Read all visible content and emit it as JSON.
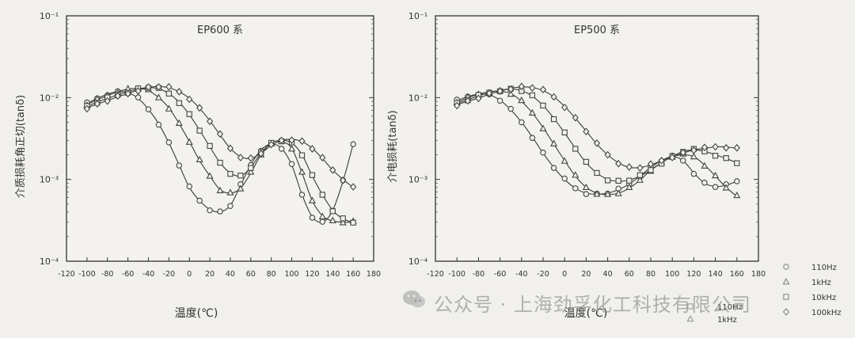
{
  "watermark": {
    "text": "公众号 · 上海劲孚化工科技有限公司"
  },
  "chart_data": [
    {
      "type": "line",
      "title": "EP600 系",
      "xlabel": "温度(℃)",
      "ylabel": "介质损耗角正切(tanδ)",
      "yscale": "log",
      "xlim": [
        -120,
        180
      ],
      "ylim": [
        0.0001,
        0.1
      ],
      "xticks": [
        "-120",
        "-100",
        "-80",
        "-60",
        "-40",
        "-20",
        "0",
        "20",
        "40",
        "60",
        "80",
        "100",
        "120",
        "140",
        "160",
        "180"
      ],
      "yticks": [
        "10⁻¹",
        "10⁻²",
        "10⁻³",
        "10⁻⁴"
      ],
      "grid": false,
      "legend": "none",
      "series": [
        {
          "marker": "circle",
          "x": [
            -100,
            -90,
            -80,
            -70,
            -60,
            -50,
            -40,
            -30,
            -20,
            -10,
            0,
            10,
            20,
            30,
            40,
            50,
            60,
            70,
            80,
            90,
            100,
            110,
            120,
            130,
            140,
            150,
            160
          ],
          "y": [
            0.0085,
            0.0098,
            0.011,
            0.0118,
            0.0115,
            0.0098,
            0.0072,
            0.0048,
            0.0028,
            0.0015,
            0.0008,
            0.00055,
            0.00043,
            0.0004,
            0.00048,
            0.00085,
            0.0015,
            0.0023,
            0.0027,
            0.0024,
            0.0015,
            0.00065,
            0.00035,
            0.0003,
            0.00042,
            0.00095,
            0.0027
          ]
        },
        {
          "marker": "triangle",
          "x": [
            -100,
            -90,
            -80,
            -70,
            -60,
            -50,
            -40,
            -30,
            -20,
            -10,
            0,
            10,
            20,
            30,
            40,
            50,
            60,
            70,
            80,
            90,
            100,
            110,
            120,
            130,
            140,
            150,
            160
          ],
          "y": [
            0.0082,
            0.0094,
            0.0106,
            0.0118,
            0.0127,
            0.013,
            0.0122,
            0.01,
            0.0075,
            0.0048,
            0.0029,
            0.0017,
            0.0011,
            0.00075,
            0.00068,
            0.00078,
            0.0012,
            0.002,
            0.0028,
            0.0029,
            0.0024,
            0.0012,
            0.00055,
            0.00036,
            0.00031,
            0.0003,
            0.0003
          ]
        },
        {
          "marker": "square",
          "x": [
            -100,
            -90,
            -80,
            -70,
            -60,
            -50,
            -40,
            -30,
            -20,
            -10,
            0,
            10,
            20,
            30,
            40,
            50,
            60,
            70,
            80,
            90,
            100,
            110,
            120,
            130,
            140,
            150,
            160
          ],
          "y": [
            0.0078,
            0.0088,
            0.0098,
            0.0108,
            0.0118,
            0.0128,
            0.0133,
            0.0128,
            0.0112,
            0.0088,
            0.0062,
            0.004,
            0.0025,
            0.0016,
            0.0012,
            0.0011,
            0.0014,
            0.0021,
            0.0028,
            0.003,
            0.0028,
            0.002,
            0.0011,
            0.00065,
            0.00042,
            0.00033,
            0.0003
          ]
        },
        {
          "marker": "diamond",
          "x": [
            -100,
            -90,
            -80,
            -70,
            -60,
            -50,
            -40,
            -30,
            -20,
            -10,
            0,
            10,
            20,
            30,
            40,
            50,
            60,
            70,
            80,
            90,
            100,
            110,
            120,
            130,
            140,
            150,
            160
          ],
          "y": [
            0.0075,
            0.0083,
            0.0092,
            0.0102,
            0.0112,
            0.0124,
            0.0133,
            0.0137,
            0.0132,
            0.0118,
            0.0098,
            0.0074,
            0.0052,
            0.0035,
            0.0024,
            0.0019,
            0.0018,
            0.0021,
            0.0026,
            0.003,
            0.0031,
            0.0029,
            0.0024,
            0.0018,
            0.0013,
            0.001,
            0.0008
          ]
        }
      ]
    },
    {
      "type": "line",
      "title": "EP500 系",
      "xlabel": "温度(℃)",
      "ylabel": "介电损耗(tanδ)",
      "yscale": "log",
      "xlim": [
        -120,
        180
      ],
      "ylim": [
        0.0001,
        0.1
      ],
      "xticks": [
        "-120",
        "-100",
        "-80",
        "-60",
        "-40",
        "-20",
        "0",
        "20",
        "40",
        "60",
        "80",
        "100",
        "120",
        "140",
        "160",
        "180"
      ],
      "yticks": [
        "10⁻¹",
        "10⁻²",
        "10⁻³",
        "10⁻⁴"
      ],
      "grid": false,
      "legend": "right",
      "legend_items": [
        {
          "marker": "circle",
          "label": "110Hz"
        },
        {
          "marker": "triangle",
          "label": "1kHz"
        },
        {
          "marker": "square",
          "label": "10kHz"
        },
        {
          "marker": "diamond",
          "label": "100kHz"
        }
      ],
      "legend_ghost": [
        {
          "marker": "square",
          "label": "110Hz"
        },
        {
          "marker": "triangle",
          "label": "1kHz"
        }
      ],
      "series": [
        {
          "name": "110Hz",
          "marker": "circle",
          "x": [
            -100,
            -90,
            -80,
            -70,
            -60,
            -50,
            -40,
            -30,
            -20,
            -10,
            0,
            10,
            20,
            30,
            40,
            50,
            60,
            70,
            80,
            90,
            100,
            110,
            120,
            130,
            140,
            150,
            160
          ],
          "y": [
            0.0092,
            0.0103,
            0.011,
            0.0108,
            0.0093,
            0.0071,
            0.005,
            0.0033,
            0.0021,
            0.0014,
            0.001,
            0.00078,
            0.00068,
            0.00066,
            0.00068,
            0.00075,
            0.00088,
            0.0011,
            0.0014,
            0.0017,
            0.0019,
            0.0017,
            0.0012,
            0.0009,
            0.00082,
            0.00085,
            0.00095
          ]
        },
        {
          "name": "1kHz",
          "marker": "triangle",
          "x": [
            -100,
            -90,
            -80,
            -70,
            -60,
            -50,
            -40,
            -30,
            -20,
            -10,
            0,
            10,
            20,
            30,
            40,
            50,
            60,
            70,
            80,
            90,
            100,
            110,
            120,
            130,
            140,
            150,
            160
          ],
          "y": [
            0.0088,
            0.0099,
            0.011,
            0.0118,
            0.012,
            0.0112,
            0.009,
            0.0065,
            0.0043,
            0.0027,
            0.0017,
            0.0011,
            0.0008,
            0.00068,
            0.00065,
            0.00068,
            0.00078,
            0.00098,
            0.0013,
            0.0016,
            0.0019,
            0.002,
            0.0019,
            0.0015,
            0.0011,
            0.0008,
            0.00062
          ]
        },
        {
          "name": "10kHz",
          "marker": "square",
          "x": [
            -100,
            -90,
            -80,
            -70,
            -60,
            -50,
            -40,
            -30,
            -20,
            -10,
            0,
            10,
            20,
            30,
            40,
            50,
            60,
            70,
            80,
            90,
            100,
            110,
            120,
            130,
            140,
            150,
            160
          ],
          "y": [
            0.0085,
            0.0094,
            0.0105,
            0.0115,
            0.0123,
            0.0127,
            0.0122,
            0.0104,
            0.008,
            0.0056,
            0.0037,
            0.0024,
            0.0016,
            0.0012,
            0.001,
            0.00095,
            0.00098,
            0.0011,
            0.0013,
            0.0016,
            0.0019,
            0.0022,
            0.0023,
            0.0022,
            0.002,
            0.0018,
            0.0016
          ]
        },
        {
          "name": "100kHz",
          "marker": "diamond",
          "x": [
            -100,
            -90,
            -80,
            -70,
            -60,
            -50,
            -40,
            -30,
            -20,
            -10,
            0,
            10,
            20,
            30,
            40,
            50,
            60,
            70,
            80,
            90,
            100,
            110,
            120,
            130,
            140,
            150,
            160
          ],
          "y": [
            0.0082,
            0.009,
            0.0099,
            0.011,
            0.012,
            0.013,
            0.0135,
            0.0133,
            0.0122,
            0.0102,
            0.0078,
            0.0056,
            0.0039,
            0.0027,
            0.002,
            0.0016,
            0.0014,
            0.0014,
            0.0015,
            0.0017,
            0.0019,
            0.0021,
            0.0023,
            0.0024,
            0.0025,
            0.0025,
            0.0024
          ]
        }
      ]
    }
  ]
}
